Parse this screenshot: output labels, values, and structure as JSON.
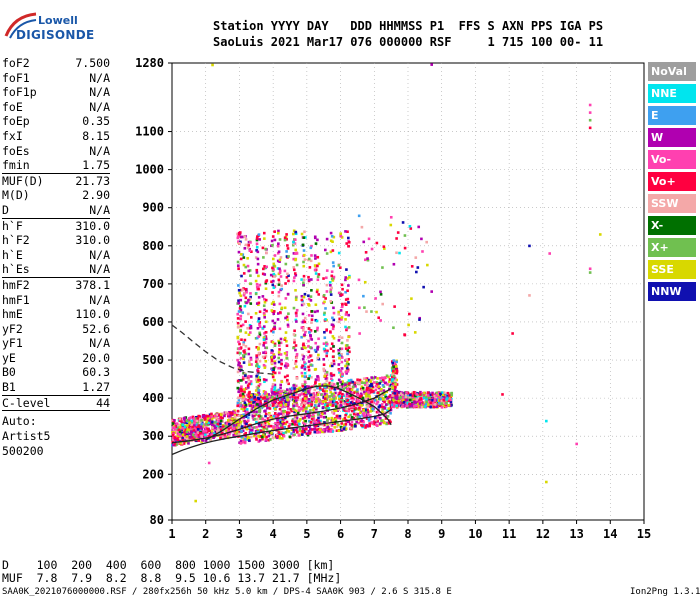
{
  "logo": {
    "line1": "Lowell",
    "line2": "DIGISONDE"
  },
  "header": {
    "line1": "Station YYYY DAY   DDD HHMMSS P1  FFS S AXN PPS IGA PS",
    "line2": "SaoLuis 2021 Mar17 076 000000 RSF     1 715 100 00- 11"
  },
  "params": [
    {
      "key": "foF2",
      "value": "7.500"
    },
    {
      "key": "foF1",
      "value": "N/A"
    },
    {
      "key": "foF1p",
      "value": "N/A"
    },
    {
      "key": "foE",
      "value": "N/A"
    },
    {
      "key": "foEp",
      "value": "0.35"
    },
    {
      "key": "fxI",
      "value": "8.15"
    },
    {
      "key": "foEs",
      "value": "N/A"
    },
    {
      "key": "fmin",
      "value": "1.75"
    },
    {
      "key": "MUF(D)",
      "value": "21.73"
    },
    {
      "key": "M(D)",
      "value": "2.90"
    },
    {
      "key": "D",
      "value": "N/A"
    },
    {
      "key": "h`F",
      "value": "310.0"
    },
    {
      "key": "h`F2",
      "value": "310.0"
    },
    {
      "key": "h`E",
      "value": "N/A"
    },
    {
      "key": "h`Es",
      "value": "N/A"
    },
    {
      "key": "hmF2",
      "value": "378.1"
    },
    {
      "key": "hmF1",
      "value": "N/A"
    },
    {
      "key": "hmE",
      "value": "110.0"
    },
    {
      "key": "yF2",
      "value": "52.6"
    },
    {
      "key": "yF1",
      "value": "N/A"
    },
    {
      "key": "yE",
      "value": "20.0"
    },
    {
      "key": "B0",
      "value": "60.3"
    },
    {
      "key": "B1",
      "value": "1.27"
    },
    {
      "key": "C-level",
      "value": "44"
    }
  ],
  "scaler": {
    "label": "Auto:",
    "name": "Artist5",
    "version": "500200"
  },
  "legend": [
    {
      "label": "NoVal",
      "color": "#9e9e9e"
    },
    {
      "label": "NNE",
      "color": "#00e5ee"
    },
    {
      "label": "E",
      "color": "#3ea0f0"
    },
    {
      "label": "W",
      "color": "#b000b0"
    },
    {
      "label": "Vo-",
      "color": "#ff40b0"
    },
    {
      "label": "Vo+",
      "color": "#ff0040"
    },
    {
      "label": "SSW",
      "color": "#f4a8a8"
    },
    {
      "label": "X-",
      "color": "#007000"
    },
    {
      "label": "X+",
      "color": "#70c050"
    },
    {
      "label": "SSE",
      "color": "#d8d800"
    },
    {
      "label": "NNW",
      "color": "#1010b0"
    }
  ],
  "muf_table": {
    "row1": "D    100  200  400  600  800 1000 1500 3000 [km]",
    "row2": "MUF  7.8  7.9  8.2  8.8  9.5 10.6 13.7 21.7 [MHz]"
  },
  "footer": {
    "left": "SAA0K_2021076000000.RSF / 280fx256h 50 kHz 5.0 km / DPS-4 SAA0K 903 / 2.6 S 315.8 E",
    "right": "Ion2Png 1.3.17"
  },
  "chart_data": {
    "type": "scatter",
    "title": "",
    "xlabel": "",
    "ylabel": "",
    "xlim": [
      1,
      15
    ],
    "ylim": [
      80,
      1280
    ],
    "x_ticks": [
      1,
      2,
      3,
      4,
      5,
      6,
      7,
      8,
      9,
      10,
      11,
      12,
      13,
      14,
      15
    ],
    "y_ticks": [
      80,
      200,
      300,
      400,
      500,
      600,
      700,
      800,
      900,
      1000,
      1100,
      1280
    ],
    "grid": "dotted",
    "legend_position": "right",
    "traces": [
      {
        "name": "profile-solid-lower",
        "style": "solid",
        "x": [
          1.0,
          1.3,
          1.6,
          1.9,
          2.2,
          2.6,
          3.0,
          3.5,
          4.0,
          4.5,
          5.0,
          5.5,
          6.0,
          6.5,
          7.0,
          7.3,
          7.5
        ],
        "y": [
          252,
          263,
          272,
          280,
          287,
          294,
          300,
          308,
          315,
          321,
          327,
          333,
          339,
          345,
          352,
          358,
          370
        ]
      },
      {
        "name": "profile-solid-upper",
        "style": "solid",
        "x": [
          1.0,
          1.5,
          2.0,
          2.5,
          3.0,
          3.5,
          4.0,
          4.5,
          5.0,
          5.5,
          6.0,
          6.5,
          7.0,
          7.5
        ],
        "y": [
          283,
          288,
          295,
          305,
          318,
          333,
          345,
          353,
          359,
          366,
          374,
          385,
          400,
          425
        ]
      },
      {
        "name": "profile-solid-rise",
        "style": "solid",
        "x": [
          2.0,
          2.5,
          3.0,
          3.5,
          4.0,
          4.5,
          5.0,
          5.3,
          5.6,
          5.9,
          6.2,
          6.6,
          7.0,
          7.2,
          7.4,
          7.5
        ],
        "y": [
          290,
          315,
          345,
          372,
          395,
          410,
          425,
          431,
          432,
          427,
          415,
          398,
          378,
          362,
          345,
          330
        ]
      },
      {
        "name": "profile-dashed",
        "style": "dashed",
        "x": [
          1.0,
          1.3,
          1.6,
          2.0,
          2.4,
          2.8,
          3.2,
          3.6,
          4.0
        ],
        "y": [
          592,
          572,
          550,
          522,
          497,
          480,
          470,
          466,
          463
        ]
      }
    ]
  }
}
